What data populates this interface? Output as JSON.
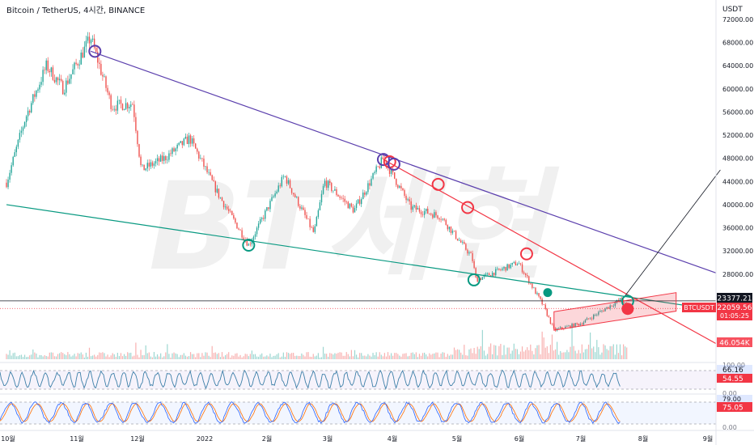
{
  "header": {
    "title": "Bitcoin / TetherUS, 4시간, BINANCE"
  },
  "watermark": "BT세현",
  "price_axis": {
    "unit": "USDT",
    "ticks": [
      "72000.00",
      "68000.00",
      "64000.00",
      "60000.00",
      "56000.00",
      "52000.00",
      "48000.00",
      "44000.00",
      "40000.00",
      "36000.00",
      "32000.00",
      "28000.00"
    ]
  },
  "labels": {
    "level": "23377.21",
    "symbol": "BTCUSDT",
    "last_price": "22059.56",
    "countdown": "01:05:25",
    "volume": "46.054K",
    "rsi_top": "100.00",
    "rsi_a": "66.16",
    "rsi_b": "54.55",
    "rsi_bottom": "0.00",
    "stoch_a": "79.00",
    "stoch_b": "75.05",
    "stoch_bottom": "0.00"
  },
  "time_axis": [
    "10월",
    "11월",
    "12월",
    "2022",
    "2월",
    "3월",
    "4월",
    "5월",
    "6월",
    "7월",
    "8월",
    "9월"
  ],
  "colors": {
    "up": "#26a69a",
    "down": "#ef5350",
    "purple": "#5b3fad",
    "green": "#089981",
    "red": "#f23645",
    "rsi": "#7e57c2",
    "stoch_k": "#2962ff",
    "stoch_d": "#ff6d00"
  },
  "chart_data": {
    "type": "candlestick",
    "title": "Bitcoin / TetherUS, 4시간, BINANCE",
    "y_unit": "USDT",
    "ylim": [
      16000,
      74000
    ],
    "price_path": [
      [
        "2021-10-01",
        43800
      ],
      [
        "2021-10-10",
        55000
      ],
      [
        "2021-10-20",
        64000
      ],
      [
        "2021-10-28",
        60000
      ],
      [
        "2021-11-10",
        68900
      ],
      [
        "2021-11-20",
        57000
      ],
      [
        "2021-11-30",
        57500
      ],
      [
        "2021-12-04",
        46000
      ],
      [
        "2021-12-15",
        48000
      ],
      [
        "2021-12-27",
        51500
      ],
      [
        "2022-01-10",
        41500
      ],
      [
        "2022-01-24",
        33000
      ],
      [
        "2022-02-10",
        45000
      ],
      [
        "2022-02-24",
        35000
      ],
      [
        "2022-03-01",
        44000
      ],
      [
        "2022-03-15",
        39000
      ],
      [
        "2022-03-29",
        48000
      ],
      [
        "2022-04-11",
        39500
      ],
      [
        "2022-04-25",
        38000
      ],
      [
        "2022-05-10",
        31000
      ],
      [
        "2022-05-12",
        27000
      ],
      [
        "2022-06-01",
        30000
      ],
      [
        "2022-06-13",
        22500
      ],
      [
        "2022-06-18",
        18300
      ],
      [
        "2022-07-01",
        19500
      ],
      [
        "2022-07-20",
        23700
      ],
      [
        "2022-07-23",
        22060
      ]
    ],
    "trendlines": [
      {
        "name": "",
        "from": [
          "2021-11-10",
          66500
        ],
        "to": [
          "2022-09-10",
          28200
        ],
        "color": "#5b3fad"
      },
      {
        "name": "",
        "from": [
          "2021-10-01",
          40000
        ],
        "to": [
          "2022-09-10",
          21800
        ],
        "color": "#089981"
      },
      {
        "name": "",
        "from": [
          "2022-03-29",
          47800
        ],
        "to": [
          "2022-09-10",
          16000
        ],
        "color": "#f23645"
      }
    ],
    "channel": {
      "upper": [
        [
          "2022-06-18",
          21500
        ],
        [
          "2022-08-15",
          24800
        ]
      ],
      "lower": [
        [
          "2022-06-18",
          18300
        ],
        [
          "2022-08-15",
          21600
        ]
      ]
    },
    "horizontal_level": 23377.21,
    "last_price": 22059.56,
    "volume_last": "46.054K",
    "rsi": {
      "last": [
        66.16,
        54.55
      ],
      "range": [
        0,
        100
      ]
    },
    "stoch_rsi": {
      "last": [
        79.0,
        75.05
      ],
      "range": [
        0,
        100
      ]
    },
    "x_ticks": [
      "10월",
      "11월",
      "12월",
      "2022",
      "2월",
      "3월",
      "4월",
      "5월",
      "6월",
      "7월",
      "8월",
      "9월"
    ]
  }
}
